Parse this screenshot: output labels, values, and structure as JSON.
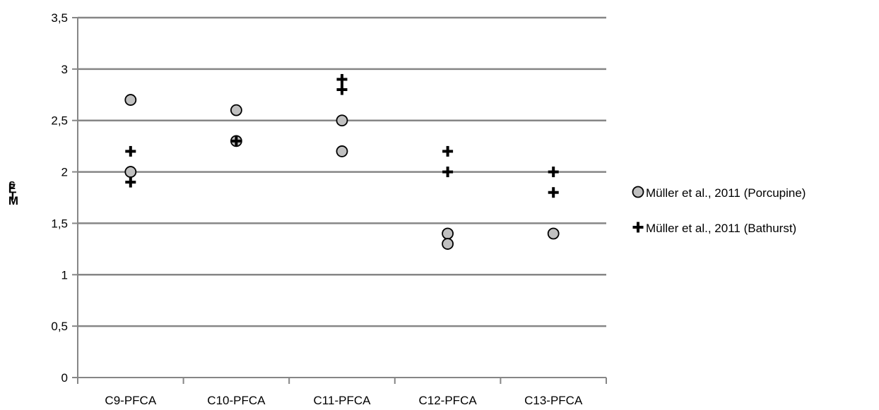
{
  "chart_data": {
    "type": "scatter",
    "title": "",
    "xlabel": "",
    "ylabel_lines": [
      "s",
      "F",
      "M",
      "T"
    ],
    "categories": [
      "C9-PFCA",
      "C10-PFCA",
      "C11-PFCA",
      "C12-PFCA",
      "C13-PFCA"
    ],
    "ylim": [
      0,
      3.5
    ],
    "yticks": [
      0,
      0.5,
      1,
      1.5,
      2,
      2.5,
      3,
      3.5
    ],
    "ytick_labels": [
      "0",
      "0,5",
      "1",
      "1,5",
      "2",
      "2,5",
      "3",
      "3,5"
    ],
    "grid": "horizontal",
    "legend_position": "right",
    "series": [
      {
        "name": "Müller et al., 2011 (Porcupine)",
        "marker": "circle",
        "color": "#c0c0c0",
        "points": [
          {
            "category": "C9-PFCA",
            "y": 2.7
          },
          {
            "category": "C9-PFCA",
            "y": 2.0
          },
          {
            "category": "C10-PFCA",
            "y": 2.6
          },
          {
            "category": "C10-PFCA",
            "y": 2.3
          },
          {
            "category": "C11-PFCA",
            "y": 2.5
          },
          {
            "category": "C11-PFCA",
            "y": 2.2
          },
          {
            "category": "C12-PFCA",
            "y": 1.4
          },
          {
            "category": "C12-PFCA",
            "y": 1.3
          },
          {
            "category": "C13-PFCA",
            "y": 1.4
          }
        ]
      },
      {
        "name": "Müller et al., 2011 (Bathurst)",
        "marker": "plus",
        "color": "#000000",
        "points": [
          {
            "category": "C9-PFCA",
            "y": 2.2
          },
          {
            "category": "C9-PFCA",
            "y": 1.9
          },
          {
            "category": "C10-PFCA",
            "y": 2.3
          },
          {
            "category": "C11-PFCA",
            "y": 2.9
          },
          {
            "category": "C11-PFCA",
            "y": 2.8
          },
          {
            "category": "C12-PFCA",
            "y": 2.2
          },
          {
            "category": "C12-PFCA",
            "y": 2.0
          },
          {
            "category": "C13-PFCA",
            "y": 2.0
          },
          {
            "category": "C13-PFCA",
            "y": 1.8
          }
        ]
      }
    ]
  },
  "colors": {
    "gridline": "#868686",
    "axis": "#868686",
    "marker_fill": "#c0c0c0",
    "marker_stroke": "#000000",
    "plus": "#000000"
  }
}
